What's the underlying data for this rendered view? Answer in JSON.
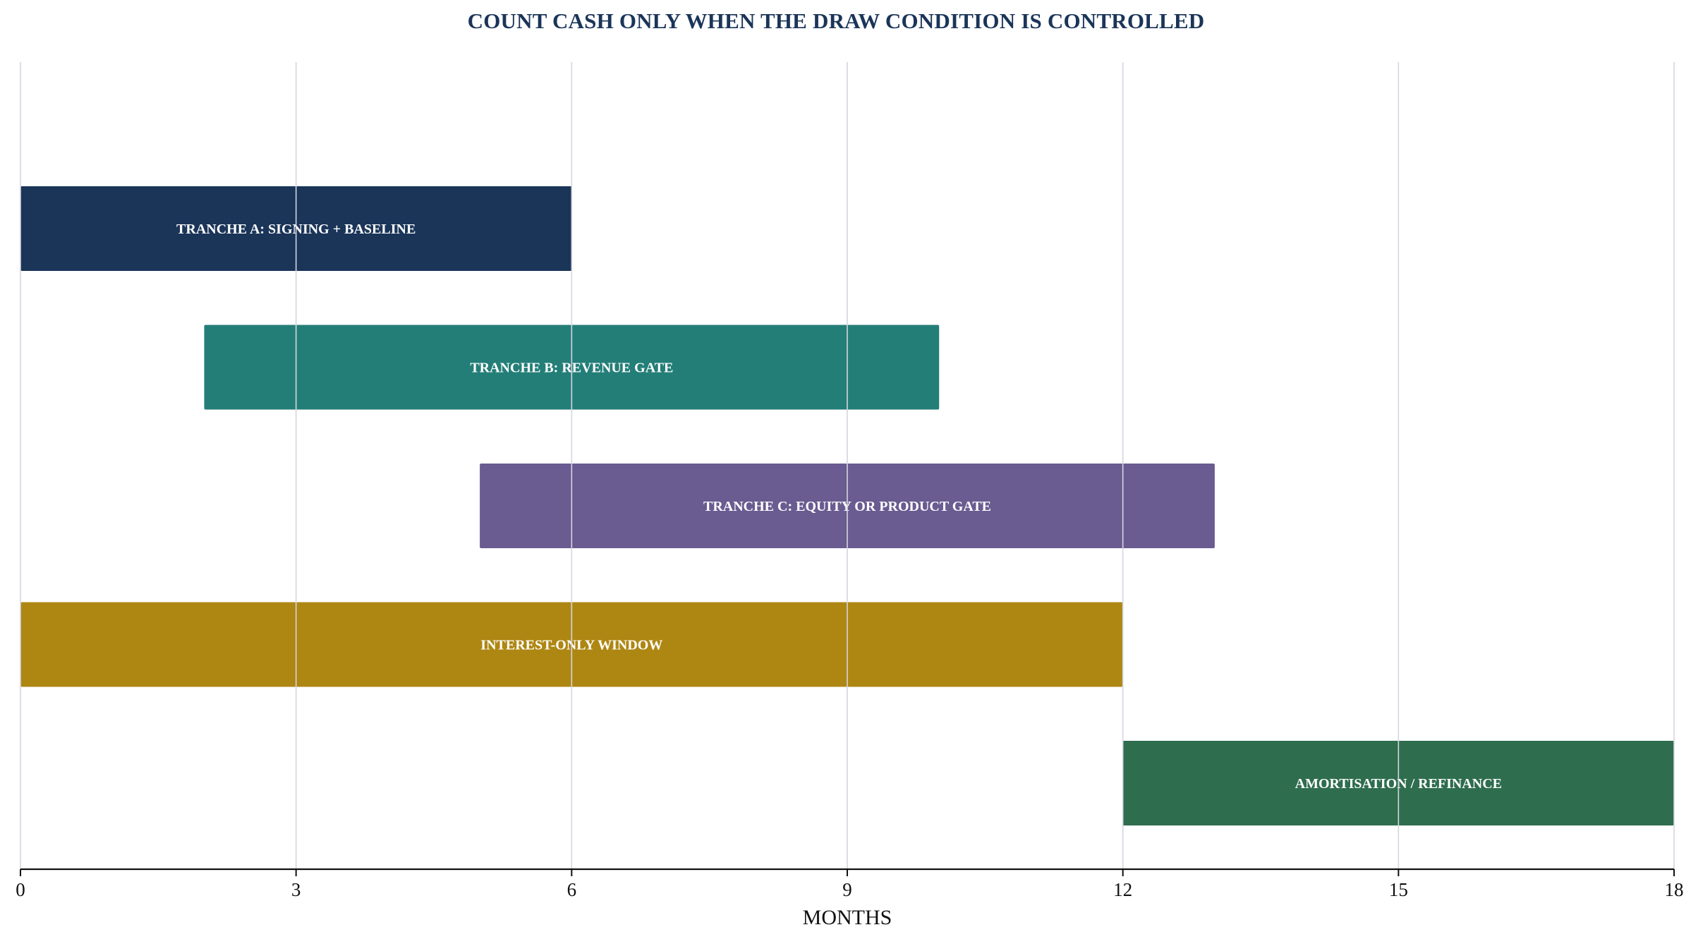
{
  "colors": {
    "title": "#1b3559",
    "grid": "#d3d6df",
    "axis": "#111111"
  },
  "chart_data": {
    "type": "bar",
    "orientation": "horizontal-range",
    "title": "COUNT CASH ONLY WHEN THE DRAW CONDITION IS CONTROLLED",
    "xlabel": "MONTHS",
    "ylabel": "",
    "xlim": [
      0,
      18
    ],
    "xticks": [
      0,
      3,
      6,
      9,
      12,
      15,
      18
    ],
    "grid": "vertical",
    "legend": "none",
    "series": [
      {
        "label": "TRANCHE A: SIGNING + BASELINE",
        "start": 0,
        "end": 6,
        "color": "#1b3559"
      },
      {
        "label": "TRANCHE B: REVENUE GATE",
        "start": 2,
        "end": 10,
        "color": "#247e78"
      },
      {
        "label": "TRANCHE C: EQUITY OR PRODUCT GATE",
        "start": 5,
        "end": 13,
        "color": "#6a5b91"
      },
      {
        "label": "INTEREST-ONLY WINDOW",
        "start": 0,
        "end": 12,
        "color": "#ae8713"
      },
      {
        "label": "AMORTISATION / REFINANCE",
        "start": 12,
        "end": 18,
        "color": "#2e6d4e"
      }
    ]
  }
}
